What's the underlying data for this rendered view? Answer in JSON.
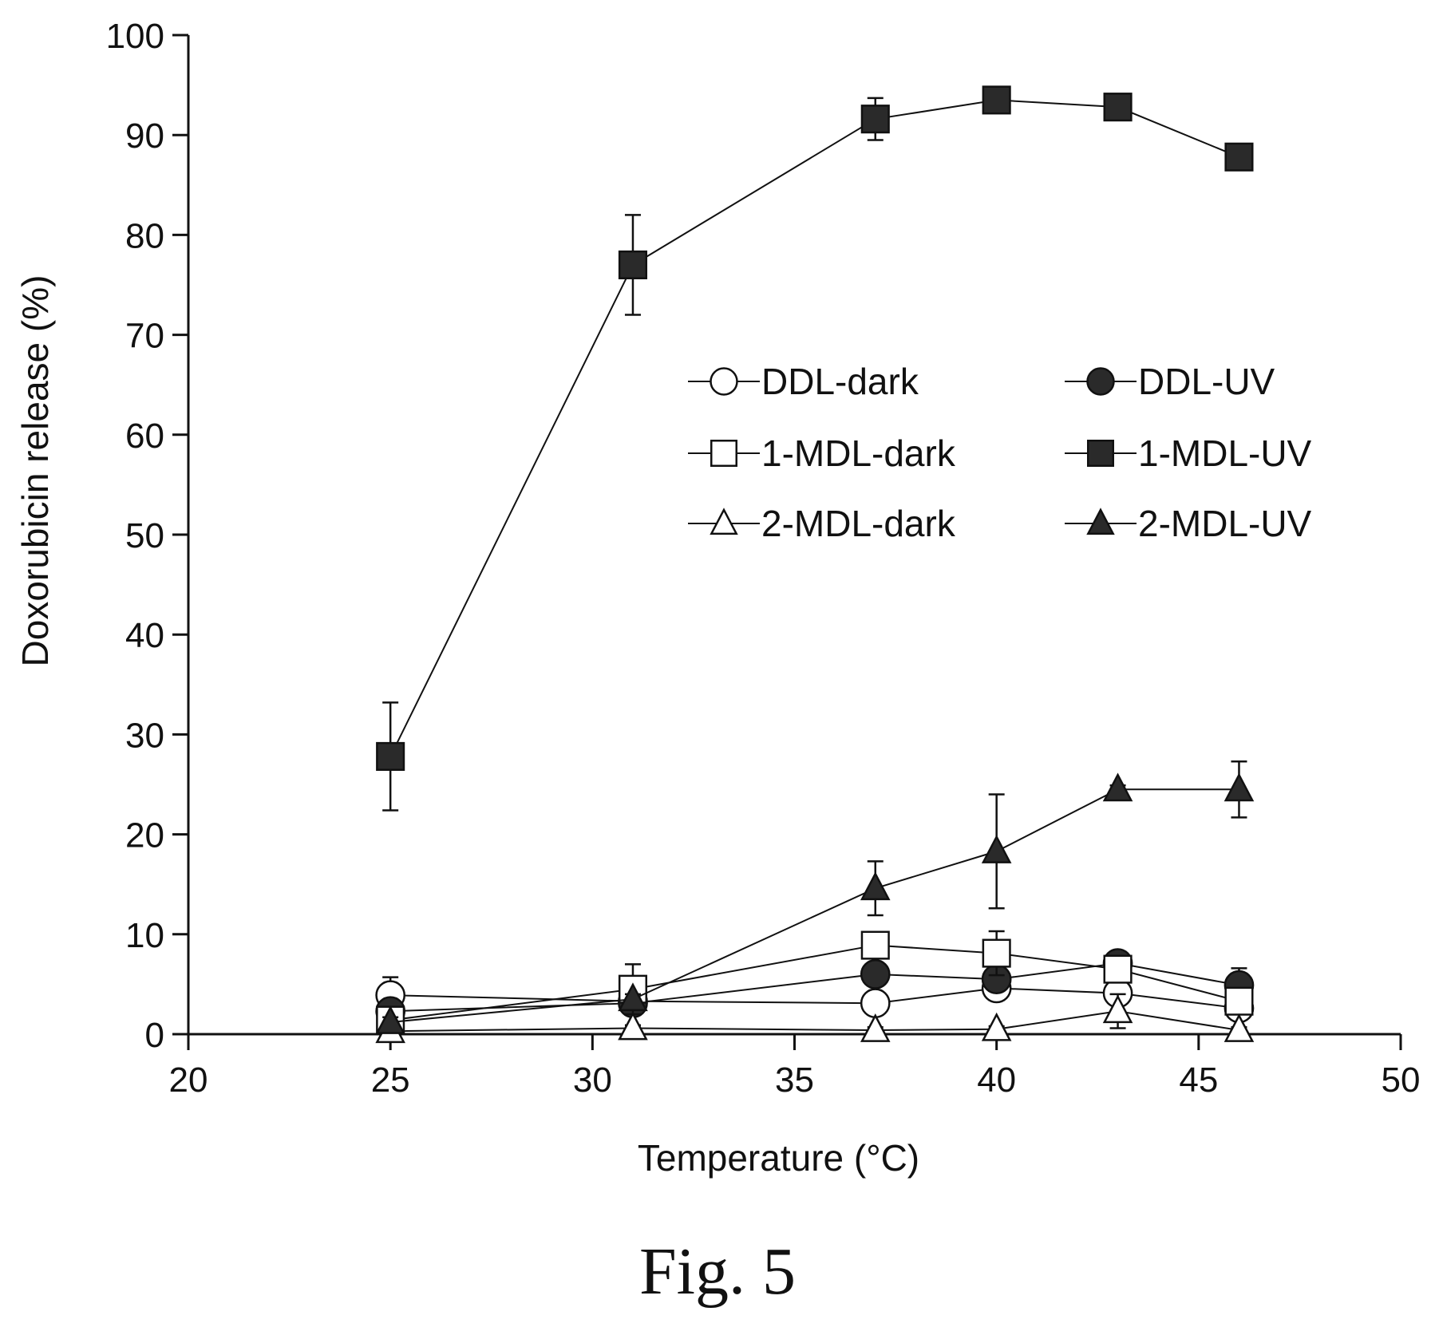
{
  "chart_data": {
    "type": "line",
    "title": "",
    "xlabel": "Temperature (°C)",
    "ylabel": "Doxorubicin release (%)",
    "xlim": [
      20,
      50
    ],
    "ylim": [
      0,
      100
    ],
    "xticks": [
      20,
      25,
      30,
      35,
      40,
      45,
      50
    ],
    "yticks": [
      0,
      10,
      20,
      30,
      40,
      50,
      60,
      70,
      80,
      90,
      100
    ],
    "grid": false,
    "legend_position": "center-right",
    "x": [
      25,
      31,
      37,
      40,
      43,
      46
    ],
    "series": [
      {
        "name": "DDL-dark",
        "marker": "circle",
        "filled": false,
        "values": [
          3.9,
          3.3,
          3.1,
          4.6,
          4.1,
          2.6
        ],
        "errors": [
          1.8,
          0.8,
          0.5,
          1.2,
          0.6,
          0.5
        ]
      },
      {
        "name": "DDL-UV",
        "marker": "circle",
        "filled": true,
        "values": [
          2.3,
          3.1,
          6.0,
          5.5,
          7.1,
          4.9
        ],
        "errors": [
          0.6,
          0.5,
          0.5,
          0.8,
          0.5,
          1.7
        ]
      },
      {
        "name": "1-MDL-dark",
        "marker": "square",
        "filled": false,
        "values": [
          1.4,
          4.5,
          8.9,
          8.1,
          6.5,
          3.3
        ],
        "errors": [
          0.4,
          2.5,
          0.6,
          2.2,
          0.5,
          0.5
        ]
      },
      {
        "name": "1-MDL-UV",
        "marker": "square",
        "filled": true,
        "values": [
          27.8,
          77.0,
          91.6,
          93.5,
          92.8,
          87.8
        ],
        "errors": [
          5.4,
          5.0,
          2.1,
          0.5,
          0.5,
          0.5
        ]
      },
      {
        "name": "2-MDL-dark",
        "marker": "triangle",
        "filled": false,
        "values": [
          0.3,
          0.6,
          0.4,
          0.5,
          2.3,
          0.4
        ],
        "errors": [
          0.5,
          0.3,
          0.3,
          0.3,
          1.7,
          0.3
        ]
      },
      {
        "name": "2-MDL-UV",
        "marker": "triangle",
        "filled": true,
        "values": [
          1.2,
          3.5,
          14.6,
          18.3,
          24.5,
          24.5
        ],
        "errors": [
          0.5,
          0.5,
          2.7,
          5.7,
          0.4,
          2.8
        ]
      }
    ]
  },
  "caption": "Fig. 5"
}
